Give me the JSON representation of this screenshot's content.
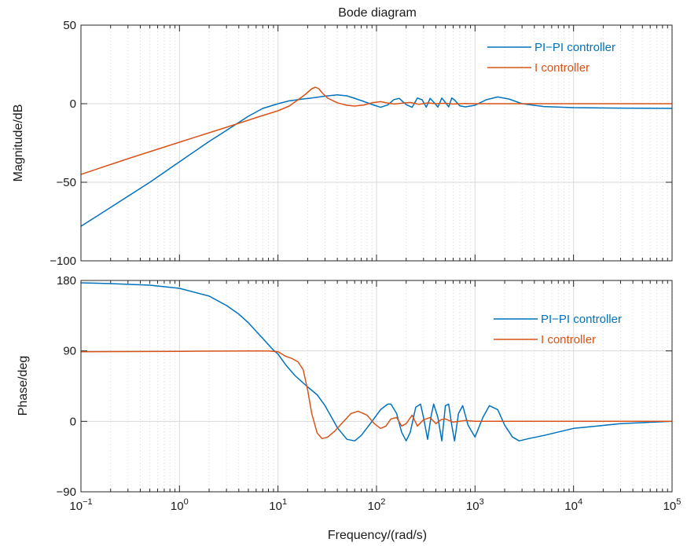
{
  "title": "Bode diagram",
  "colors": {
    "pi_pi": "#0072BD",
    "i_ctrl": "#D95319",
    "grid": "#d9d9d9",
    "axis": "#262626"
  },
  "chart_data": [
    {
      "type": "line",
      "panel": "magnitude",
      "title": "Bode diagram",
      "xlabel": "",
      "ylabel": "Magnitude/dB",
      "xscale": "log",
      "xlim": [
        0.1,
        100000
      ],
      "ylim": [
        -100,
        50
      ],
      "yticks": [
        -100,
        -50,
        0,
        50
      ],
      "ytick_labels": [
        "−100",
        "−50",
        "0",
        "50"
      ],
      "grid": true,
      "legend_position": "top-right",
      "series": [
        {
          "name": "PI−PI controller",
          "color": "#0072BD",
          "x": [
            0.1,
            0.2,
            0.5,
            1,
            2,
            3,
            5,
            7,
            10,
            13,
            17,
            22,
            30,
            40,
            50,
            70,
            90,
            110,
            130,
            150,
            170,
            200,
            230,
            260,
            290,
            320,
            350,
            380,
            420,
            460,
            500,
            540,
            580,
            620,
            700,
            800,
            1000,
            1300,
            1700,
            2200,
            3000,
            5000,
            10000,
            30000,
            100000
          ],
          "y": [
            -78,
            -66,
            -50,
            -37,
            -24,
            -17,
            -8,
            -3,
            0,
            1.8,
            2.8,
            3.6,
            4.8,
            5.6,
            5.0,
            2.0,
            -0.5,
            -2.3,
            -0.8,
            2.6,
            3.4,
            -0.6,
            -2.3,
            3.6,
            2.5,
            -2.2,
            3.4,
            1.0,
            -2.1,
            3.6,
            0.8,
            -2.0,
            3.6,
            2.4,
            -1.4,
            -2.0,
            -1.0,
            2.5,
            4.3,
            3.0,
            0.0,
            -1.8,
            -2.5,
            -2.8,
            -3.0
          ]
        },
        {
          "name": "I controller",
          "color": "#D95319",
          "x": [
            0.1,
            0.3,
            1,
            2,
            3,
            5,
            7,
            10,
            13,
            16,
            19,
            22,
            24,
            26,
            28,
            32,
            40,
            50,
            60,
            75,
            90,
            110,
            130,
            150,
            180,
            220,
            270,
            330,
            400,
            500,
            600,
            800,
            1000,
            2000,
            5000,
            10000,
            100000
          ],
          "y": [
            -45,
            -35,
            -24.5,
            -18.5,
            -15,
            -10.5,
            -7.5,
            -4.5,
            -1.5,
            2.5,
            6.0,
            9.5,
            10.5,
            9.5,
            7.0,
            3.5,
            0.6,
            -1.0,
            -1.5,
            -0.8,
            0.6,
            1.3,
            0.4,
            -0.2,
            0.3,
            0.8,
            -0.4,
            0.5,
            0.0,
            0.3,
            -0.2,
            0.1,
            0.0,
            0.0,
            0.0,
            0.0,
            0.0
          ]
        }
      ]
    },
    {
      "type": "line",
      "panel": "phase",
      "xlabel": "Frequency/(rad/s)",
      "ylabel": "Phase/deg",
      "xscale": "log",
      "xlim": [
        0.1,
        100000
      ],
      "ylim": [
        -90,
        180
      ],
      "yticks": [
        -90,
        0,
        90,
        180
      ],
      "ytick_labels": [
        "−90",
        "0",
        "90",
        "180"
      ],
      "xticks": [
        0.1,
        1,
        10,
        100,
        1000,
        10000,
        100000
      ],
      "xtick_labels": [
        {
          "base": "10",
          "exp": "−1"
        },
        {
          "base": "10",
          "exp": "0"
        },
        {
          "base": "10",
          "exp": "1"
        },
        {
          "base": "10",
          "exp": "2"
        },
        {
          "base": "10",
          "exp": "3"
        },
        {
          "base": "10",
          "exp": "4"
        },
        {
          "base": "10",
          "exp": "5"
        }
      ],
      "grid": true,
      "legend_position": "top-right",
      "series": [
        {
          "name": "PI−PI controller",
          "color": "#0072BD",
          "x": [
            0.1,
            0.2,
            0.5,
            1,
            2,
            3,
            4,
            5,
            6,
            7,
            8,
            9,
            10,
            12,
            15,
            20,
            25,
            30,
            35,
            40,
            50,
            60,
            70,
            90,
            110,
            130,
            140,
            160,
            180,
            200,
            220,
            250,
            280,
            300,
            330,
            360,
            380,
            420,
            460,
            500,
            540,
            580,
            620,
            680,
            750,
            850,
            1000,
            1200,
            1400,
            1700,
            2000,
            2400,
            2800,
            3500,
            5000,
            10000,
            30000,
            100000
          ],
          "y": [
            177,
            176,
            174,
            170,
            160,
            148,
            137,
            126,
            115,
            106,
            98,
            91,
            86,
            72,
            58,
            44,
            34,
            20,
            5,
            -8,
            -23,
            -25,
            -18,
            0,
            15,
            22,
            22,
            10,
            -14,
            -25,
            -14,
            18,
            22,
            5,
            -23,
            8,
            22,
            5,
            -25,
            20,
            22,
            -5,
            -25,
            10,
            20,
            -5,
            -20,
            5,
            20,
            15,
            -5,
            -20,
            -25,
            -22,
            -18,
            -9,
            -3,
            0
          ]
        },
        {
          "name": "I controller",
          "color": "#D95319",
          "x": [
            0.1,
            1,
            5,
            8,
            10,
            12,
            14,
            16,
            18,
            20,
            22,
            25,
            28,
            32,
            38,
            45,
            55,
            65,
            80,
            95,
            110,
            125,
            140,
            160,
            180,
            200,
            230,
            260,
            300,
            350,
            400,
            450,
            500,
            600,
            800,
            1000,
            2000,
            5000,
            100000
          ],
          "y": [
            89,
            89.5,
            90,
            90,
            89,
            83,
            80,
            76,
            66,
            40,
            10,
            -15,
            -22,
            -20,
            -12,
            -2,
            10,
            13,
            8,
            -3,
            -9,
            -6,
            3,
            5,
            -6,
            -3,
            8,
            -6,
            2,
            5,
            -3,
            2,
            3,
            -1,
            1,
            0,
            0,
            0,
            0
          ]
        }
      ]
    }
  ]
}
